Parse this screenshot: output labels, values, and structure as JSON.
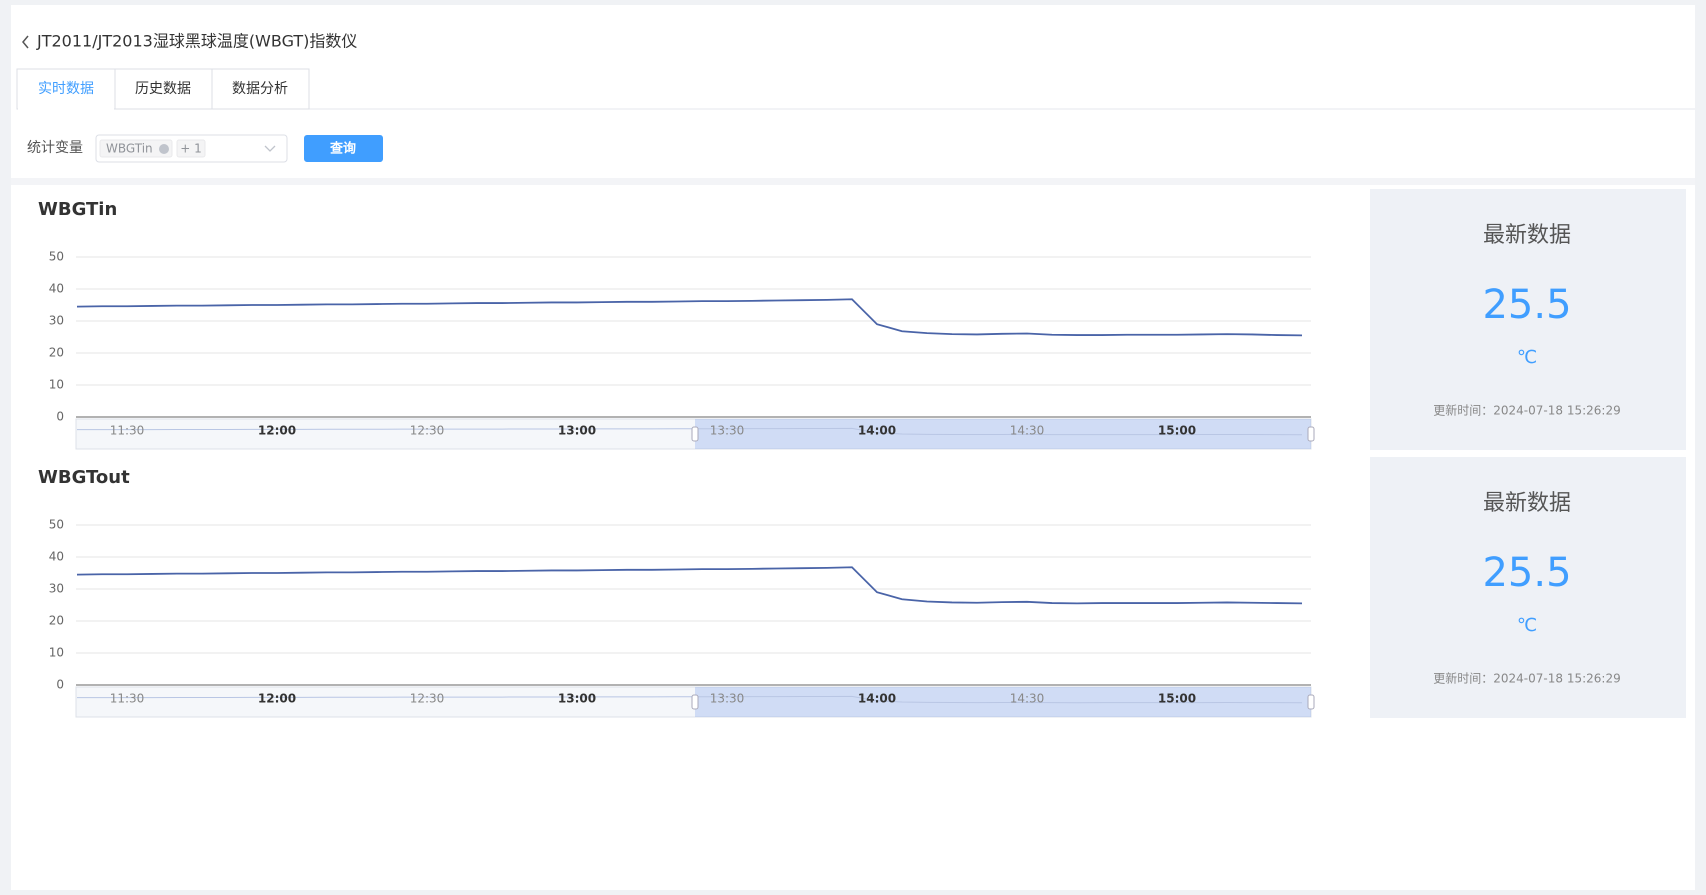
{
  "header": {
    "title": "JT2011/JT2013湿球黑球温度(WBGT)指数仪"
  },
  "tabs": [
    "实时数据",
    "历史数据",
    "数据分析"
  ],
  "filter": {
    "label": "统计变量",
    "selected_tag": "WBGTin",
    "more_tag": "+ 1",
    "button": "查询"
  },
  "chart_data": [
    {
      "type": "line",
      "title": "WBGTin",
      "color": "#4a64a8",
      "grid": true,
      "ylim": [
        0,
        50
      ],
      "yticks": [
        0,
        10,
        20,
        30,
        40,
        50
      ],
      "categories": [
        null,
        null,
        "11:30",
        null,
        null,
        null,
        null,
        null,
        "12:00",
        null,
        null,
        null,
        null,
        null,
        "12:30",
        null,
        null,
        null,
        null,
        null,
        "13:00",
        null,
        null,
        null,
        null,
        null,
        "13:30",
        null,
        null,
        null,
        null,
        null,
        "14:00",
        null,
        null,
        null,
        null,
        null,
        "14:30",
        null,
        null,
        null,
        null,
        null,
        "15:00",
        null,
        null,
        null,
        null,
        null
      ],
      "values": [
        34.5,
        34.6,
        34.6,
        34.7,
        34.8,
        34.8,
        34.9,
        35.0,
        35.0,
        35.1,
        35.2,
        35.2,
        35.3,
        35.4,
        35.4,
        35.5,
        35.6,
        35.6,
        35.7,
        35.8,
        35.8,
        35.9,
        36.0,
        36.0,
        36.1,
        36.2,
        36.2,
        36.3,
        36.4,
        36.5,
        36.6,
        36.8,
        29.0,
        26.8,
        26.2,
        25.9,
        25.8,
        26.0,
        26.1,
        25.7,
        25.6,
        25.6,
        25.7,
        25.7,
        25.7,
        25.8,
        25.9,
        25.8,
        25.6,
        25.5
      ]
    },
    {
      "type": "line",
      "title": "WBGTout",
      "color": "#4a64a8",
      "grid": true,
      "ylim": [
        0,
        50
      ],
      "yticks": [
        0,
        10,
        20,
        30,
        40,
        50
      ],
      "categories": [
        null,
        null,
        "11:30",
        null,
        null,
        null,
        null,
        null,
        "12:00",
        null,
        null,
        null,
        null,
        null,
        "12:30",
        null,
        null,
        null,
        null,
        null,
        "13:00",
        null,
        null,
        null,
        null,
        null,
        "13:30",
        null,
        null,
        null,
        null,
        null,
        "14:00",
        null,
        null,
        null,
        null,
        null,
        "14:30",
        null,
        null,
        null,
        null,
        null,
        "15:00",
        null,
        null,
        null,
        null,
        null
      ],
      "values": [
        34.5,
        34.6,
        34.6,
        34.7,
        34.8,
        34.8,
        34.9,
        35.0,
        35.0,
        35.1,
        35.2,
        35.2,
        35.3,
        35.4,
        35.4,
        35.5,
        35.6,
        35.6,
        35.7,
        35.8,
        35.8,
        35.9,
        36.0,
        36.0,
        36.1,
        36.2,
        36.2,
        36.3,
        36.4,
        36.5,
        36.6,
        36.8,
        29.0,
        26.8,
        26.1,
        25.8,
        25.7,
        25.9,
        26.0,
        25.6,
        25.5,
        25.6,
        25.6,
        25.6,
        25.6,
        25.7,
        25.8,
        25.7,
        25.6,
        25.5
      ]
    }
  ],
  "latest": [
    {
      "title": "最新数据",
      "value": 25.5,
      "unit": "℃",
      "updated": "更新时间：2024-07-18 15:26:29"
    },
    {
      "title": "最新数据",
      "value": 25.5,
      "unit": "℃",
      "updated": "更新时间：2024-07-18 15:26:29"
    }
  ]
}
